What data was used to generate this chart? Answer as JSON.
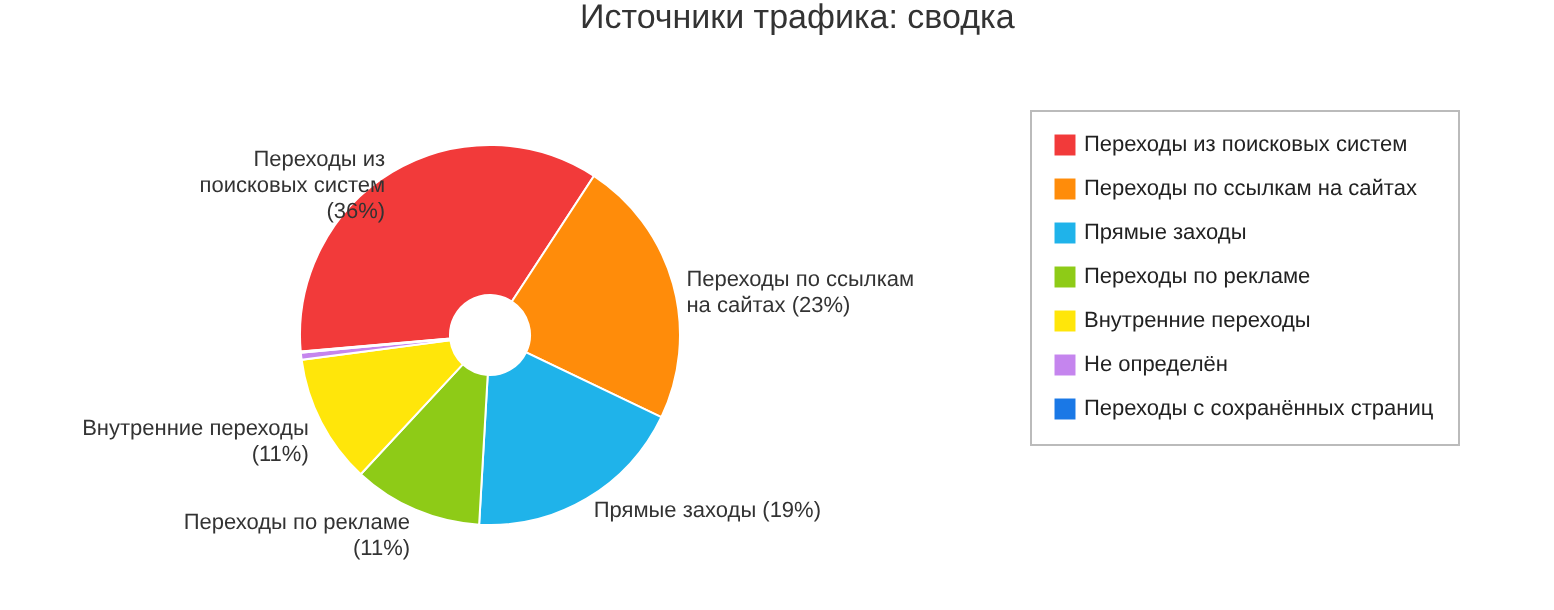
{
  "chart_data": {
    "type": "donut",
    "title": "Источники трафика: сводка",
    "categories": [
      "Переходы из поисковых систем",
      "Переходы по ссылкам на сайтах",
      "Прямые заходы",
      "Переходы по рекламе",
      "Внутренние переходы",
      "Не определён",
      "Переходы с сохранённых страниц"
    ],
    "values": [
      35.6,
      22.9,
      18.8,
      11.0,
      11.0,
      0.6,
      0.1
    ],
    "value_labels": [
      "(36%)",
      "(23%)",
      "(19%)",
      "(11%)",
      "(11%)",
      null,
      null
    ],
    "colors": [
      "#f23a3a",
      "#ff8c0a",
      "#1fb3ea",
      "#8ecb17",
      "#ffe60a",
      "#c585ee",
      "#1a78e6"
    ],
    "legend": "right"
  }
}
